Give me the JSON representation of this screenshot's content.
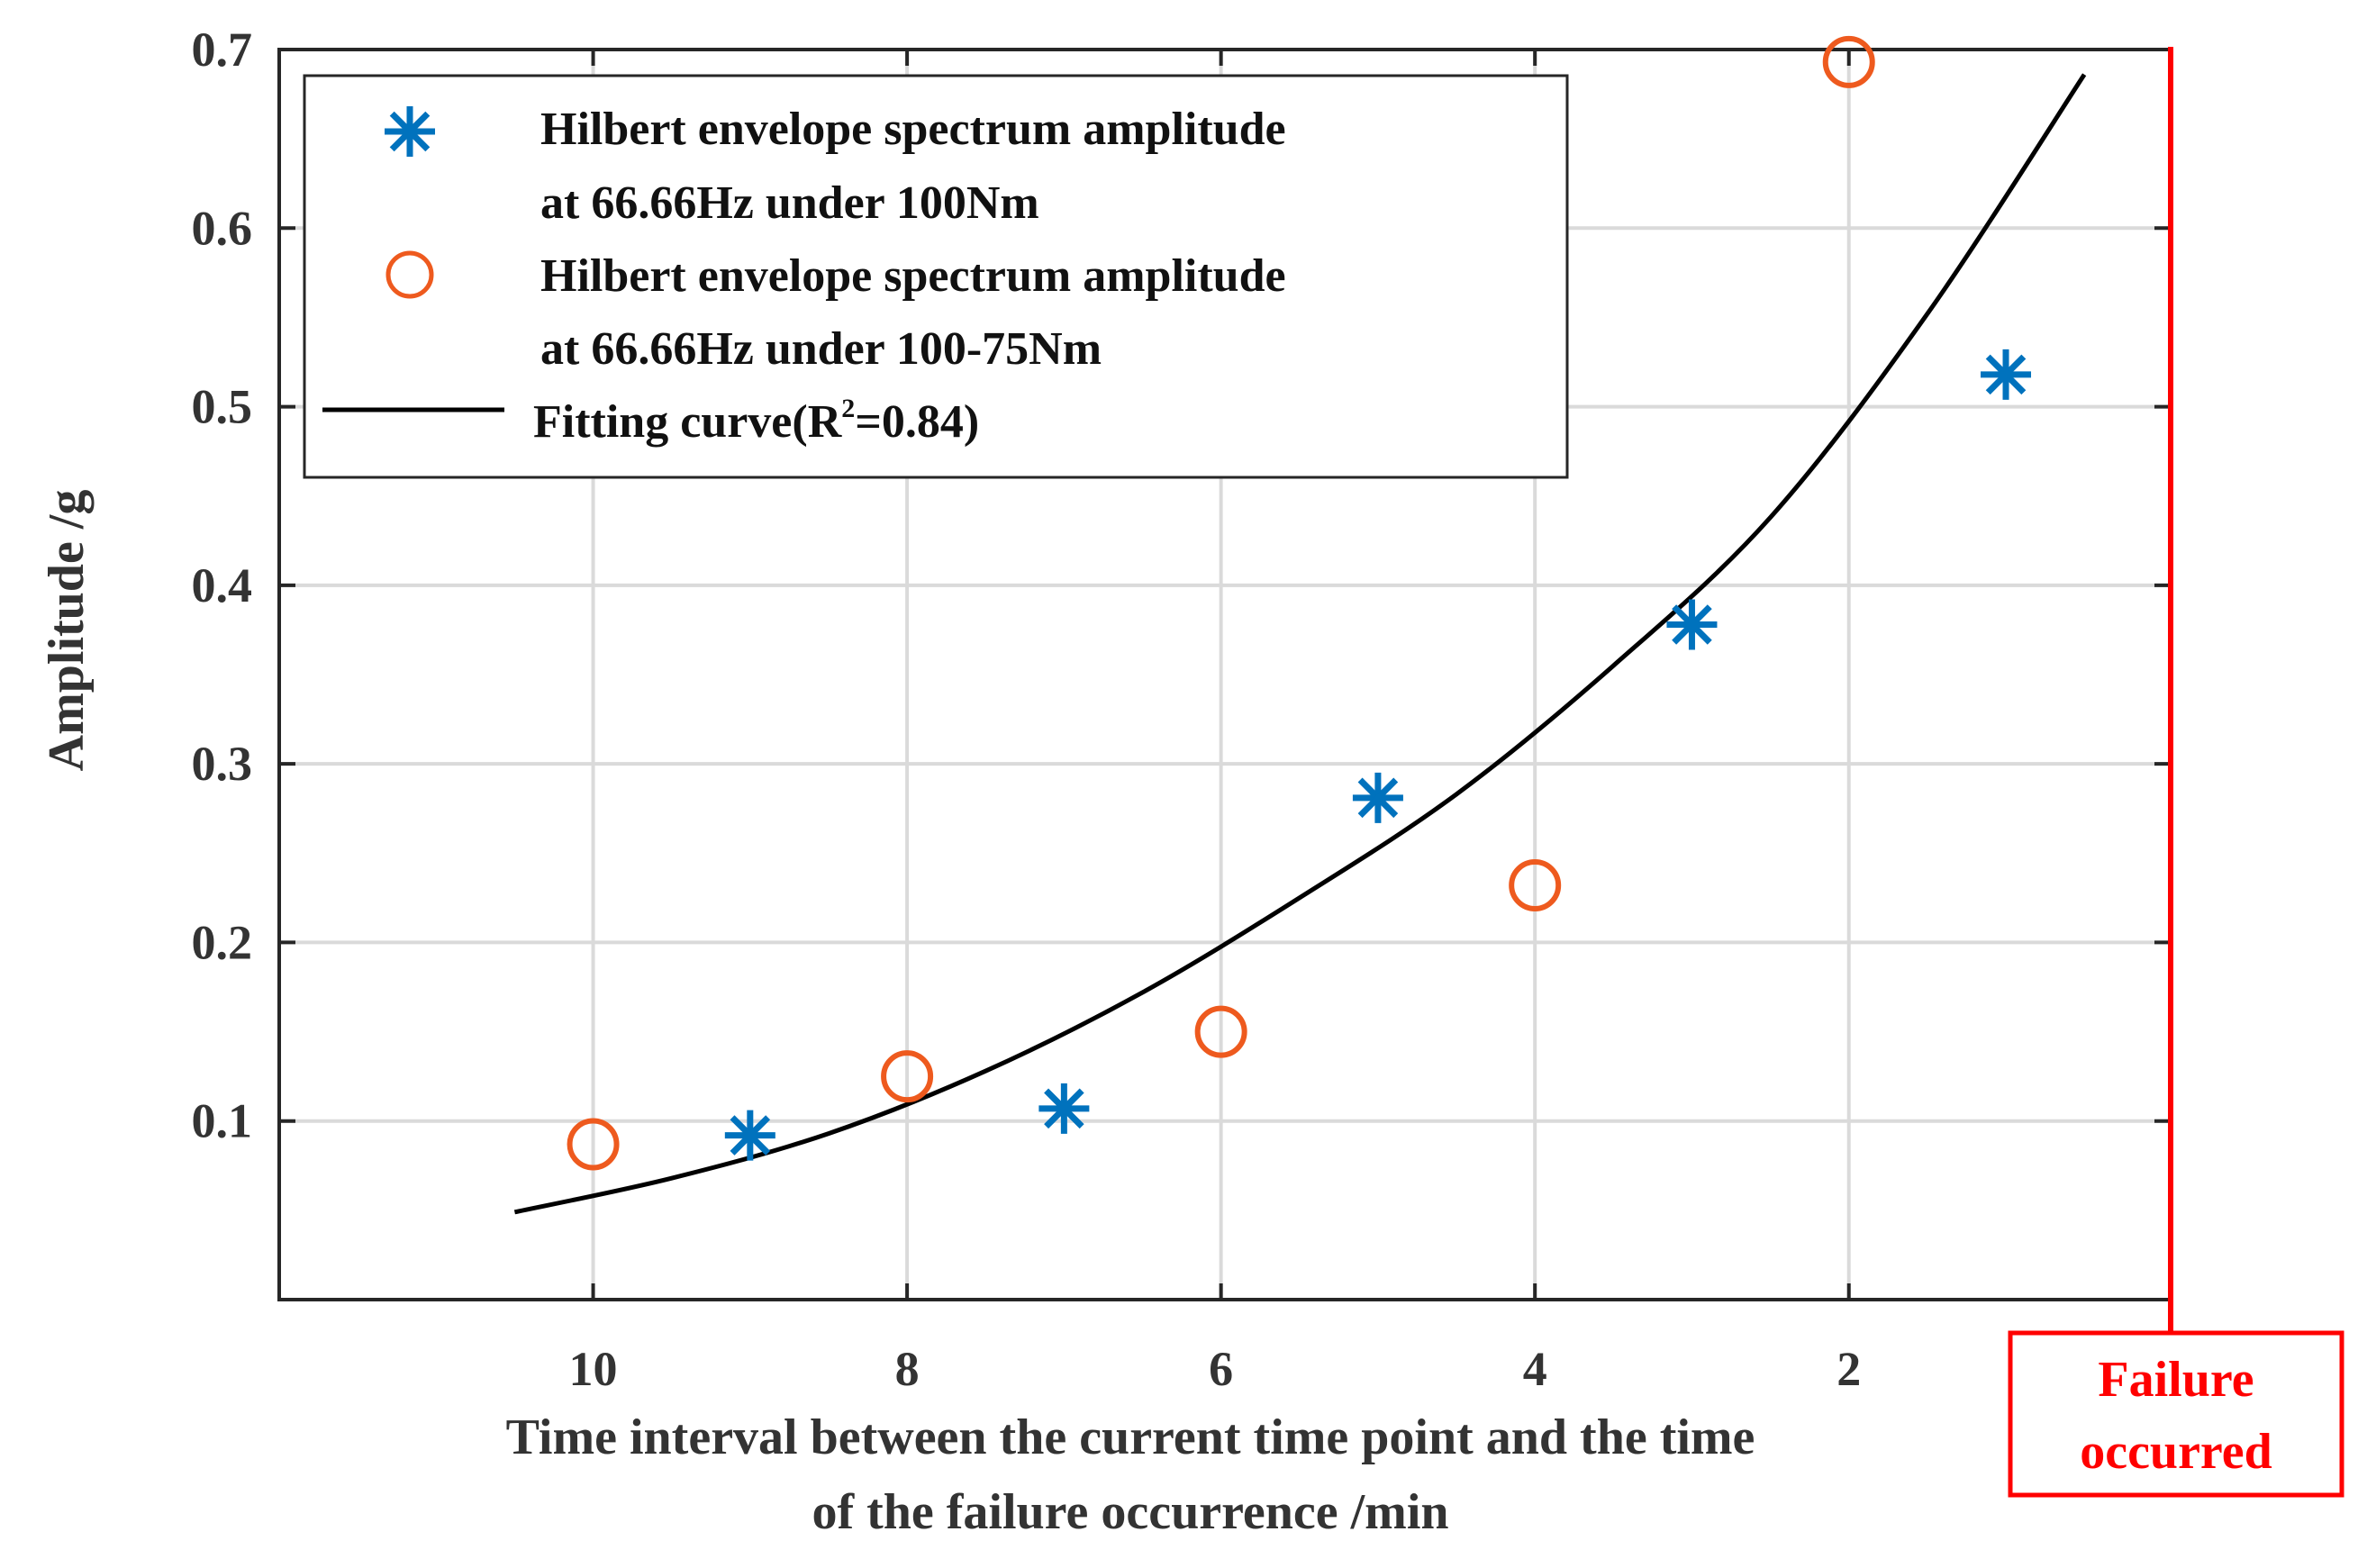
{
  "chart_data": {
    "type": "scatter",
    "title": "",
    "xlabel_lines": [
      "Time interval between the current time point and the time",
      "of the failure occurrence /min"
    ],
    "ylabel": "Amplitude /g",
    "xlim": [
      12,
      -0.05
    ],
    "ylim": [
      0,
      0.7
    ],
    "x_reversed": true,
    "x_ticks": [
      10,
      8,
      6,
      4,
      2
    ],
    "x_tick_labels": [
      "10",
      "8",
      "6",
      "4",
      "2"
    ],
    "y_ticks": [
      0.1,
      0.2,
      0.3,
      0.4,
      0.5,
      0.6,
      0.7
    ],
    "y_tick_labels": [
      "0.1",
      "0.2",
      "0.3",
      "0.4",
      "0.5",
      "0.6",
      "0.7"
    ],
    "grid": true,
    "legend_position": "top-left",
    "series": [
      {
        "name_lines": [
          "Hilbert envelope spectrum amplitude",
          "at 66.66Hz under 100Nm"
        ],
        "marker": "asterisk",
        "color": "#0072BD",
        "x": [
          9,
          7,
          5,
          3,
          1
        ],
        "y": [
          0.092,
          0.107,
          0.281,
          0.378,
          0.518
        ]
      },
      {
        "name_lines": [
          "Hilbert envelope spectrum amplitude",
          "at 66.66Hz under 100-75Nm"
        ],
        "marker": "circle",
        "color": "#EE5A1E",
        "x": [
          10,
          8,
          6,
          4,
          2
        ],
        "y": [
          0.087,
          0.125,
          0.15,
          0.232,
          0.693
        ]
      }
    ],
    "fit": {
      "label_prefix": "Fitting curve(R",
      "label_sup": "2",
      "label_suffix": "=0.84)",
      "color": "#000000",
      "x": [
        10.5,
        9.5,
        8.5,
        7.5,
        6.5,
        5.5,
        4.5,
        3.5,
        2.5,
        1.5,
        0.5
      ],
      "y": [
        0.049,
        0.068,
        0.093,
        0.128,
        0.172,
        0.225,
        0.283,
        0.355,
        0.438,
        0.552,
        0.686
      ]
    },
    "failure_marker": {
      "x": -0.05,
      "color": "#FF0000",
      "label_lines": [
        "Failure",
        "occurred"
      ]
    }
  }
}
